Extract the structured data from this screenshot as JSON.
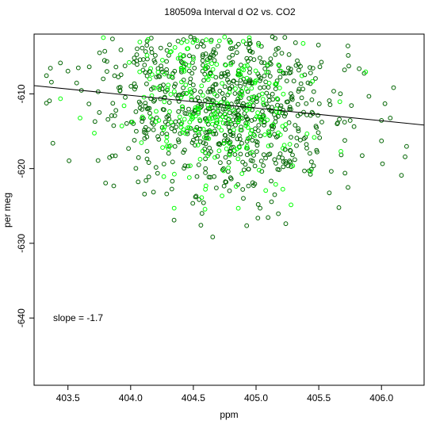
{
  "chart_data": {
    "type": "scatter",
    "title": "180509a   Interval d O2 vs. CO2",
    "xlabel": "ppm",
    "ylabel": "per meg",
    "xlim": [
      403.23,
      406.34
    ],
    "ylim": [
      -649.0,
      -602.0
    ],
    "xticks": [
      403.5,
      404.0,
      404.5,
      405.0,
      405.5,
      406.0
    ],
    "xtick_labels": [
      "403.5",
      "404.0",
      "404.5",
      "405.0",
      "405.5",
      "406.0"
    ],
    "yticks": [
      -610,
      -620,
      -630,
      -640
    ],
    "ytick_labels": [
      "-610",
      "-620",
      "-630",
      "-640"
    ],
    "annotation": "slope =  -1.7",
    "fit_line": {
      "slope": -1.7,
      "intercept": 76.6
    },
    "grid": false,
    "legend": "none",
    "series_colors": {
      "dark": "#006400",
      "bright": "#00ff00"
    },
    "point_generation": {
      "n_dark": 820,
      "n_bright": 280,
      "x_mean": 404.72,
      "x_sd": 0.47,
      "y_sd": 5.8,
      "seed": 180509
    },
    "x_edge_points": [
      403.38,
      403.36,
      403.44,
      403.5,
      406.2,
      406.07,
      406.0
    ]
  }
}
